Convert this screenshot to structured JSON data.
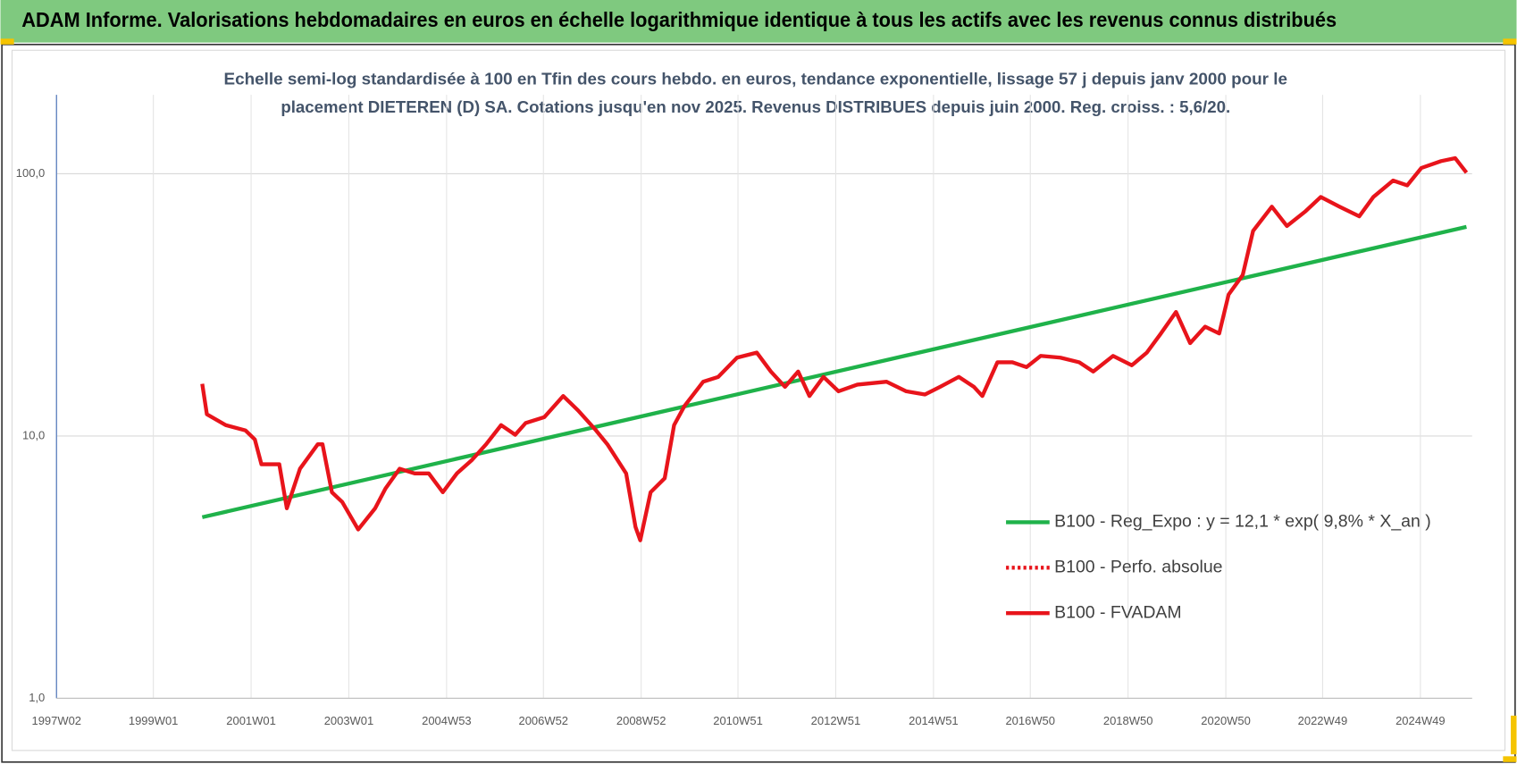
{
  "header": {
    "title": "ADAM Informe. Valorisations hebdomadaires en euros en échelle logarithmique identique à tous les actifs avec les revenus connus distribués"
  },
  "chart_data": {
    "type": "line",
    "subtitle": [
      "Echelle semi-log standardisée à 100 en Tfin des cours hebdo. en euros, tendance exponentielle, lissage 57 j depuis janv 2000 pour le",
      "placement DIETEREN (D) SA. Cotations jusqu'en nov 2025. Revenus DISTRIBUES depuis juin 2000. Reg. croiss. : 5,6/20."
    ],
    "log_y": true,
    "ylim": [
      1,
      200
    ],
    "yticks": [
      {
        "value": 1,
        "label": "1,0"
      },
      {
        "value": 10,
        "label": "10,0"
      },
      {
        "value": 100,
        "label": "100,0"
      }
    ],
    "xlim": [
      "1997W02",
      "2025W52"
    ],
    "xticks": [
      "1997W02",
      "1999W01",
      "2001W01",
      "2003W01",
      "2004W53",
      "2006W52",
      "2008W52",
      "2010W51",
      "2012W51",
      "2014W51",
      "2016W50",
      "2018W50",
      "2020W50",
      "2022W49",
      "2024W49"
    ],
    "grid": true,
    "legend": "right",
    "series": [
      {
        "name": "B100 - Reg_Expo : y = 12,1 * exp( 9,8% *  X_an )",
        "color": "#1fb24a",
        "style": "solid",
        "x": [
          "2000W01",
          "2025W46"
        ],
        "values": [
          4.9,
          62.7
        ]
      },
      {
        "name": "B100 - Perfo. absolue",
        "color": "#e8141b",
        "style": "dotted",
        "x": [],
        "values": []
      },
      {
        "name": "B100 - FVADAM",
        "color": "#e8141b",
        "style": "solid",
        "x": [
          "2000W01",
          "2000W06",
          "2000W26",
          "2000W47",
          "2001W05",
          "2001W12",
          "2001W31",
          "2001W39",
          "2002W01",
          "2002W20",
          "2002W25",
          "2002W35",
          "2002W46",
          "2003W11",
          "2003W29",
          "2003W40",
          "2004W03",
          "2004W19",
          "2004W34",
          "2004W49",
          "2005W12",
          "2005W28",
          "2005W43",
          "2006W07",
          "2006W22",
          "2006W33",
          "2007W01",
          "2007W21",
          "2007W37",
          "2008W04",
          "2008W16",
          "2008W36",
          "2008W46",
          "2008W51",
          "2009W10",
          "2009W25",
          "2009W35",
          "2009W46",
          "2010W14",
          "2010W30",
          "2010W50",
          "2011W19",
          "2011W34",
          "2011W49",
          "2012W11",
          "2012W23",
          "2012W38",
          "2013W02",
          "2013W22",
          "2014W01",
          "2014W22",
          "2014W42",
          "2015W06",
          "2015W26",
          "2015W42",
          "2015W51",
          "2016W15",
          "2016W31",
          "2016W46",
          "2017W09",
          "2017W30",
          "2017W50",
          "2018W13",
          "2018W34",
          "2019W02",
          "2019W18",
          "2019W33",
          "2019W49",
          "2020W12",
          "2020W28",
          "2020W43",
          "2021W01",
          "2021W16",
          "2021W27",
          "2021W47",
          "2022W11",
          "2022W31",
          "2022W47",
          "2023W15",
          "2023W36",
          "2023W51",
          "2024W20",
          "2024W35",
          "2024W50",
          "2025W19",
          "2025W34",
          "2025W46"
        ],
        "values": [
          15.8,
          12.1,
          11.0,
          10.5,
          9.7,
          7.8,
          7.8,
          5.3,
          7.5,
          9.3,
          9.3,
          6.1,
          5.6,
          4.4,
          5.3,
          6.3,
          7.5,
          7.2,
          7.2,
          6.1,
          7.2,
          8.1,
          9.3,
          11.0,
          10.1,
          11.2,
          11.8,
          14.2,
          12.5,
          10.5,
          9.3,
          7.2,
          4.5,
          4.0,
          6.1,
          6.9,
          11.0,
          13.0,
          16.1,
          16.8,
          19.9,
          20.8,
          17.6,
          15.4,
          17.6,
          14.2,
          16.8,
          14.8,
          15.7,
          16.1,
          14.8,
          14.4,
          15.4,
          16.8,
          15.4,
          14.2,
          19.1,
          19.1,
          18.3,
          20.2,
          19.9,
          19.1,
          17.6,
          20.2,
          18.6,
          20.8,
          24.6,
          29.7,
          22.6,
          26.1,
          24.6,
          34.6,
          41.1,
          60.5,
          74.9,
          63.2,
          72.0,
          81.5,
          74.9,
          68.8,
          81.5,
          94.2,
          90.3,
          105.2,
          111.7,
          114.7,
          101.0
        ]
      }
    ]
  }
}
